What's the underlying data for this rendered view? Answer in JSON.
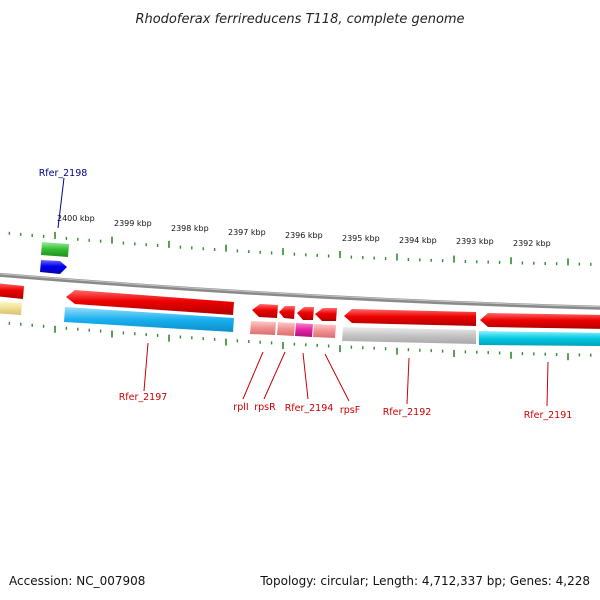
{
  "title": "Rhodoferax ferrireducens T118, complete genome",
  "footer": {
    "accession": "Accession: NC_007908",
    "topology": "Topology: circular; Length: 4,712,337 bp; Genes: 4,228"
  },
  "scale": {
    "unit": "kbp",
    "labels": [
      "2400 kbp",
      "2399 kbp",
      "2398 kbp",
      "2397 kbp",
      "2396 kbp",
      "2395 kbp",
      "2394 kbp",
      "2393 kbp",
      "2392 kbp"
    ]
  },
  "genes": [
    {
      "id": "rfer_2198",
      "label": "Rfer_2198",
      "color": "#0000dd",
      "label_color": "#00008b"
    },
    {
      "id": "rfer_2197",
      "label": "Rfer_2197",
      "color": "#dd0000",
      "label_color": "#cc0000"
    },
    {
      "id": "rpli",
      "label": "rplI",
      "color": "#dd0000",
      "label_color": "#cc0000"
    },
    {
      "id": "rpsr",
      "label": "rpsR",
      "color": "#dd0000",
      "label_color": "#cc0000"
    },
    {
      "id": "rfer_2194",
      "label": "Rfer_2194",
      "color": "#dd0000",
      "label_color": "#cc0000"
    },
    {
      "id": "rpsf",
      "label": "rpsF",
      "color": "#dd0000",
      "label_color": "#cc0000"
    },
    {
      "id": "rfer_2192",
      "label": "Rfer_2192",
      "color": "#dd0000",
      "label_color": "#cc0000"
    },
    {
      "id": "rfer_2191",
      "label": "Rfer_2191",
      "color": "#dd0000",
      "label_color": "#cc0000"
    }
  ],
  "colors": {
    "backbone": "#8a8a8a",
    "ticks": "#2e8b2e",
    "forward_gene": "#0000ee",
    "reverse_gene": "#e00000",
    "cog_green": "#33bb33",
    "cog_cyan": "#00c8e0",
    "cog_sky": "#1ab0ee",
    "cog_grey": "#c0c0c0",
    "cog_pink": "#f09090",
    "cog_magenta": "#e020a0",
    "cog_yellow": "#f0e090"
  }
}
